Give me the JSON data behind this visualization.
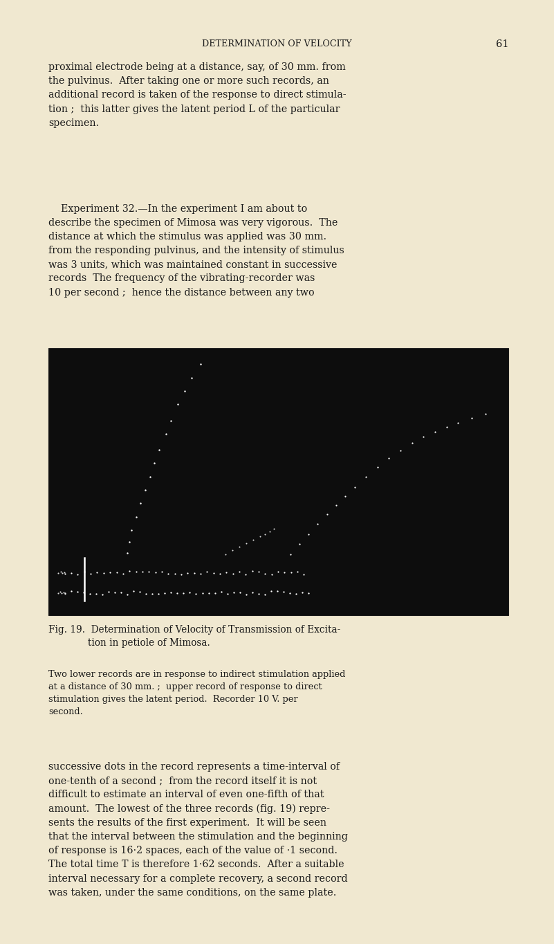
{
  "page_bg": "#f0e8d0",
  "page_width": 8.01,
  "page_height": 13.64,
  "header_title": "DETERMINATION OF VELOCITY",
  "header_page": "61",
  "body_text_color": "#1a1a1a",
  "dot_color": "#ffffff",
  "dot_size": 2.5,
  "para1": "proximal electrode being at a distance, say, of 30 mm. from\nthe pulvinus.  After taking one or more such records, an\nadditional record is taken of the response to direct stimula-\ntion ;  this latter gives the latent period L of the particular\nspecimen.",
  "para2": "    Experiment 32.—In the experiment I am about to\ndescribe the specimen of Mimosa was very vigorous.  The\ndistance at which the stimulus was applied was 30 mm.\nfrom the responding pulvinus, and the intensity of stimulus\nwas 3 units, which was maintained constant in successive\nrecords  The frequency of the vibrating-recorder was\n10 per second ;  hence the distance between any two",
  "fig_cap1": "Fig. 19.  Determination of Velocity of Transmission of Excita-\n             tion in petiole of Mimosa.",
  "fig_cap2": "Two lower records are in response to indirect stimulation applied\nat a distance of 30 mm. ;  upper record of response to direct\nstimulation gives the latent period.  Recorder 10 V. per\nsecond.",
  "para3": "successive dots in the record represents a time-interval of\none-tenth of a second ;  from the record itself it is not\ndifficult to estimate an interval of even one-fifth of that\namount.  The lowest of the three records (fig. 19) repre-\nsents the results of the first experiment.  It will be seen\nthat the interval between the stimulation and the beginning\nof response is 16·2 spaces, each of the value of ·1 second.\nThe total time T is therefore 1·62 seconds.  After a suitable\ninterval necessary for a complete recovery, a second record\nwas taken, under the same conditions, on the same plate."
}
